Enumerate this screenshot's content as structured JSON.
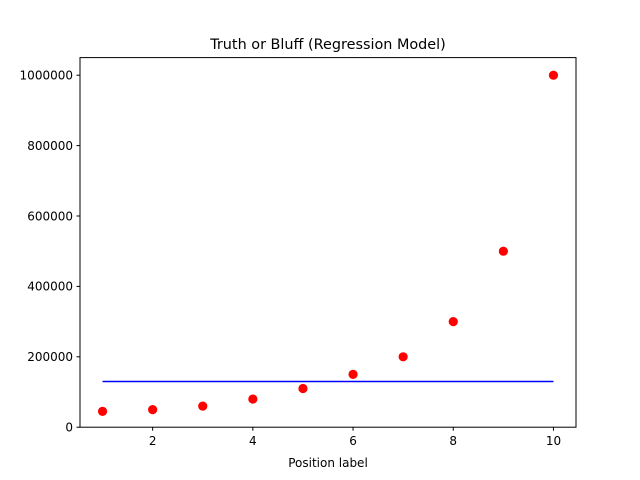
{
  "chart_data": {
    "type": "scatter",
    "title": "Truth or Bluff (Regression Model)",
    "xlabel": "Position label",
    "ylabel": "",
    "xlim": [
      0.55,
      10.45
    ],
    "ylim": [
      0,
      1050000
    ],
    "xticks": [
      2,
      4,
      6,
      8,
      10
    ],
    "yticks": [
      0,
      200000,
      400000,
      600000,
      800000,
      1000000
    ],
    "grid": false,
    "series": [
      {
        "type": "scatter",
        "color": "#ff0000",
        "x": [
          1,
          2,
          3,
          4,
          5,
          6,
          7,
          8,
          9,
          10
        ],
        "y": [
          45000,
          50000,
          60000,
          80000,
          110000,
          150000,
          200000,
          300000,
          500000,
          1000000
        ]
      },
      {
        "type": "line",
        "color": "#0000ff",
        "x": [
          1,
          10
        ],
        "y": [
          130000,
          130000
        ]
      }
    ]
  }
}
